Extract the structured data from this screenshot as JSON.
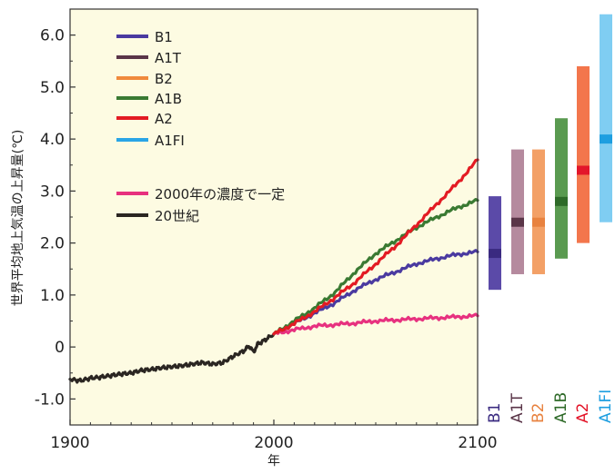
{
  "chart_data": {
    "type": "line",
    "title": "",
    "xlabel": "年",
    "ylabel": "世界平均地上気温の上昇量(℃)",
    "xlim": [
      1900,
      2100
    ],
    "ylim": [
      -1.5,
      6.5
    ],
    "x_ticks": [
      "1900",
      "2000",
      "2100"
    ],
    "y_ticks": [
      "-1.0",
      "0",
      "1.0",
      "2.0",
      "3.0",
      "4.0",
      "5.0",
      "6.0"
    ],
    "y_tick_values": [
      -1,
      0,
      1,
      2,
      3,
      4,
      5,
      6
    ],
    "x_tick_values": [
      1900,
      2000,
      2100
    ],
    "grid": false,
    "background": "#fdfbe2",
    "legend_placement": "top-left",
    "series": [
      {
        "name": "20世紀",
        "color": "#2b2622",
        "x": [
          1900,
          1905,
          1910,
          1915,
          1920,
          1925,
          1930,
          1935,
          1940,
          1945,
          1950,
          1955,
          1960,
          1965,
          1970,
          1975,
          1980,
          1985,
          1988,
          1990,
          1992,
          1995,
          2000
        ],
        "y": [
          -0.62,
          -0.65,
          -0.6,
          -0.58,
          -0.55,
          -0.52,
          -0.5,
          -0.45,
          -0.43,
          -0.4,
          -0.38,
          -0.36,
          -0.33,
          -0.3,
          -0.33,
          -0.3,
          -0.18,
          -0.08,
          0.02,
          -0.1,
          0.05,
          0.12,
          0.25
        ]
      },
      {
        "name": "2000年の濃度で一定",
        "color": "#e7317f",
        "x": [
          2000,
          2010,
          2020,
          2030,
          2040,
          2050,
          2060,
          2070,
          2080,
          2090,
          2100
        ],
        "y": [
          0.25,
          0.33,
          0.4,
          0.43,
          0.46,
          0.5,
          0.52,
          0.54,
          0.56,
          0.58,
          0.6
        ]
      },
      {
        "name": "B1",
        "color": "#4a3aa0",
        "x": [
          2000,
          2010,
          2020,
          2030,
          2040,
          2050,
          2060,
          2070,
          2080,
          2090,
          2100
        ],
        "y": [
          0.25,
          0.45,
          0.65,
          0.85,
          1.1,
          1.3,
          1.45,
          1.6,
          1.7,
          1.78,
          1.83
        ]
      },
      {
        "name": "A1B",
        "color": "#3a7a32",
        "x": [
          2000,
          2010,
          2020,
          2030,
          2040,
          2050,
          2060,
          2070,
          2080,
          2090,
          2100
        ],
        "y": [
          0.25,
          0.5,
          0.75,
          1.05,
          1.45,
          1.8,
          2.05,
          2.3,
          2.5,
          2.68,
          2.82
        ]
      },
      {
        "name": "A2",
        "color": "#e31b23",
        "x": [
          2000,
          2010,
          2020,
          2030,
          2040,
          2050,
          2060,
          2070,
          2080,
          2090,
          2100
        ],
        "y": [
          0.25,
          0.45,
          0.68,
          0.95,
          1.25,
          1.6,
          1.95,
          2.35,
          2.75,
          3.15,
          3.6
        ]
      }
    ],
    "ranges": [
      {
        "name": "B1",
        "color": "#5b4aa8",
        "marker": "#3a2a80",
        "low": 1.1,
        "high": 2.9,
        "best": 1.8
      },
      {
        "name": "A1T",
        "color": "#b58a9e",
        "marker": "#5a3548",
        "low": 1.4,
        "high": 3.8,
        "best": 2.4
      },
      {
        "name": "B2",
        "color": "#f3a066",
        "marker": "#e8823f",
        "low": 1.4,
        "high": 3.8,
        "best": 2.4
      },
      {
        "name": "A1B",
        "color": "#5a9a50",
        "marker": "#2e6a28",
        "low": 1.7,
        "high": 4.4,
        "best": 2.8
      },
      {
        "name": "A2",
        "color": "#f3764c",
        "marker": "#e3162a",
        "low": 2.0,
        "high": 5.4,
        "best": 3.4
      },
      {
        "name": "A1FI",
        "color": "#7fcdf2",
        "marker": "#1d9ee0",
        "low": 2.4,
        "high": 6.4,
        "best": 4.0
      }
    ],
    "legend": [
      {
        "label": "B1",
        "color": "#4a3aa0"
      },
      {
        "label": "A1T",
        "color": "#5a3548"
      },
      {
        "label": "B2",
        "color": "#f08a3c"
      },
      {
        "label": "A1B",
        "color": "#3a7a32"
      },
      {
        "label": "A2",
        "color": "#e31b23"
      },
      {
        "label": "A1FI",
        "color": "#2aa5e6"
      },
      {
        "label": "2000年の濃度で一定",
        "color": "#e7317f"
      },
      {
        "label": "20世紀",
        "color": "#2b2622"
      }
    ]
  }
}
